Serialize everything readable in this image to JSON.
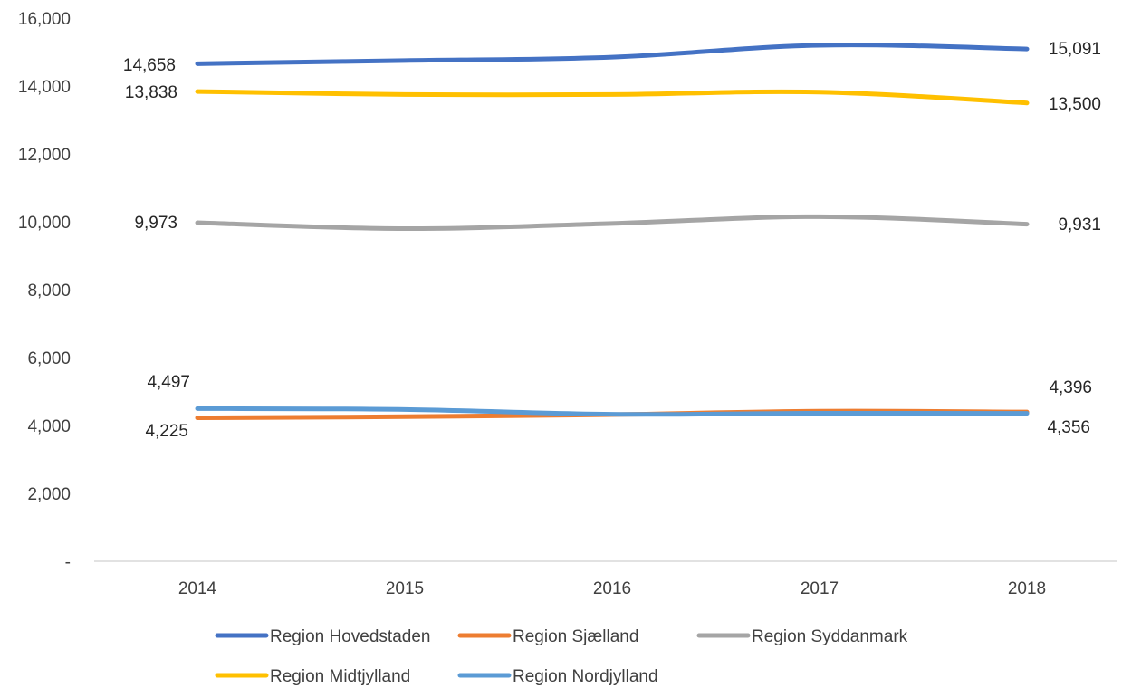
{
  "chart_data": {
    "type": "line",
    "title": "",
    "xlabel": "",
    "ylabel": "",
    "categories": [
      "2014",
      "2015",
      "2016",
      "2017",
      "2018"
    ],
    "ylim": [
      0,
      16000
    ],
    "yticks": [
      {
        "value": 0,
        "label": "-"
      },
      {
        "value": 2000,
        "label": "2,000"
      },
      {
        "value": 4000,
        "label": "4,000"
      },
      {
        "value": 6000,
        "label": "6,000"
      },
      {
        "value": 8000,
        "label": "8,000"
      },
      {
        "value": 10000,
        "label": "10,000"
      },
      {
        "value": 12000,
        "label": "12,000"
      },
      {
        "value": 14000,
        "label": "14,000"
      },
      {
        "value": 16000,
        "label": "16,000"
      }
    ],
    "grid": false,
    "legend_position": "bottom",
    "series": [
      {
        "name": "Region Hovedstaden",
        "color": "#4472C4",
        "values": [
          14658,
          14750,
          14850,
          15200,
          15091
        ],
        "labels": [
          {
            "index": 0,
            "text": "14,658"
          },
          {
            "index": 4,
            "text": "15,091"
          }
        ]
      },
      {
        "name": "Region Sjælland",
        "color": "#ED7D31",
        "values": [
          4225,
          4260,
          4320,
          4420,
          4396
        ],
        "labels": [
          {
            "index": 0,
            "text": "4,225"
          },
          {
            "index": 4,
            "text": "4,396"
          }
        ]
      },
      {
        "name": "Region Syddanmark",
        "color": "#A5A5A5",
        "values": [
          9973,
          9800,
          9950,
          10150,
          9931
        ],
        "labels": [
          {
            "index": 0,
            "text": "9,973"
          },
          {
            "index": 4,
            "text": "9,931"
          }
        ]
      },
      {
        "name": "Region Midtjylland",
        "color": "#FFC000",
        "values": [
          13838,
          13750,
          13750,
          13820,
          13500
        ],
        "labels": [
          {
            "index": 0,
            "text": "13,838"
          },
          {
            "index": 4,
            "text": "13,500"
          }
        ]
      },
      {
        "name": "Region Nordjylland",
        "color": "#5B9BD5",
        "values": [
          4497,
          4470,
          4330,
          4360,
          4356
        ],
        "labels": [
          {
            "index": 0,
            "text": "4,497"
          },
          {
            "index": 4,
            "text": "4,356"
          }
        ]
      }
    ]
  }
}
